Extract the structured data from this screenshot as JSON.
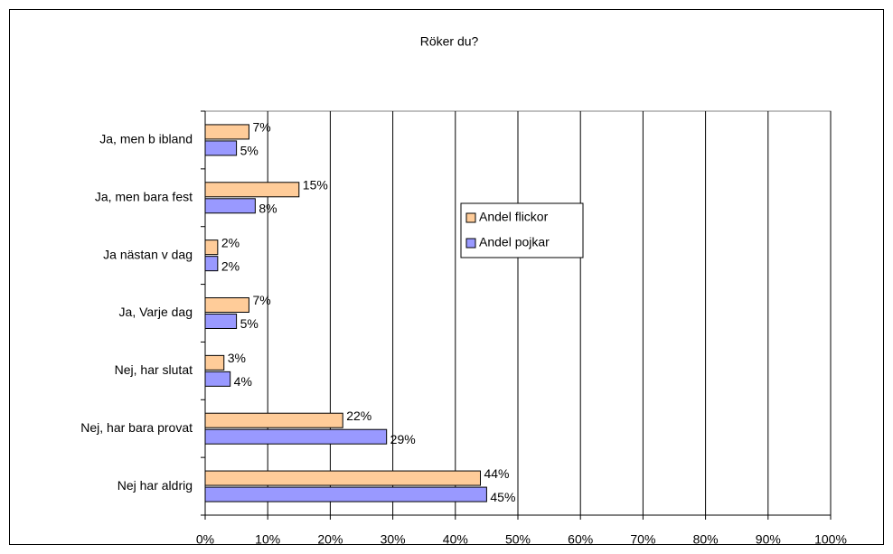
{
  "chart_data": {
    "type": "hbar",
    "title": "Röker du?",
    "categories": [
      "Ja, men b ibland",
      "Ja, men bara fest",
      "Ja nästan v dag",
      "Ja, Varje dag",
      "Nej, har slutat",
      "Nej, har bara provat",
      "Nej har aldrig"
    ],
    "series": [
      {
        "name": "Andel flickor",
        "color": "#ffcc99",
        "values": [
          7,
          15,
          2,
          7,
          3,
          22,
          44
        ],
        "value_labels": [
          "7%",
          "15%",
          "2%",
          "7%",
          "3%",
          "22%",
          "44%"
        ]
      },
      {
        "name": "Andel pojkar",
        "color": "#9999ff",
        "values": [
          5,
          8,
          2,
          5,
          4,
          29,
          45
        ],
        "value_labels": [
          "5%",
          "8%",
          "2%",
          "5%",
          "4%",
          "29%",
          "45%"
        ]
      }
    ],
    "xlim": [
      0,
      100
    ],
    "xticks": [
      {
        "value": 0,
        "label": "0%"
      },
      {
        "value": 10,
        "label": "10%"
      },
      {
        "value": 20,
        "label": "20%"
      },
      {
        "value": 30,
        "label": "30%"
      },
      {
        "value": 40,
        "label": "40%"
      },
      {
        "value": 50,
        "label": "50%"
      },
      {
        "value": 60,
        "label": "60%"
      },
      {
        "value": 70,
        "label": "70%"
      },
      {
        "value": 80,
        "label": "80%"
      },
      {
        "value": 90,
        "label": "90%"
      },
      {
        "value": 100,
        "label": "100%"
      }
    ],
    "grid": true
  }
}
